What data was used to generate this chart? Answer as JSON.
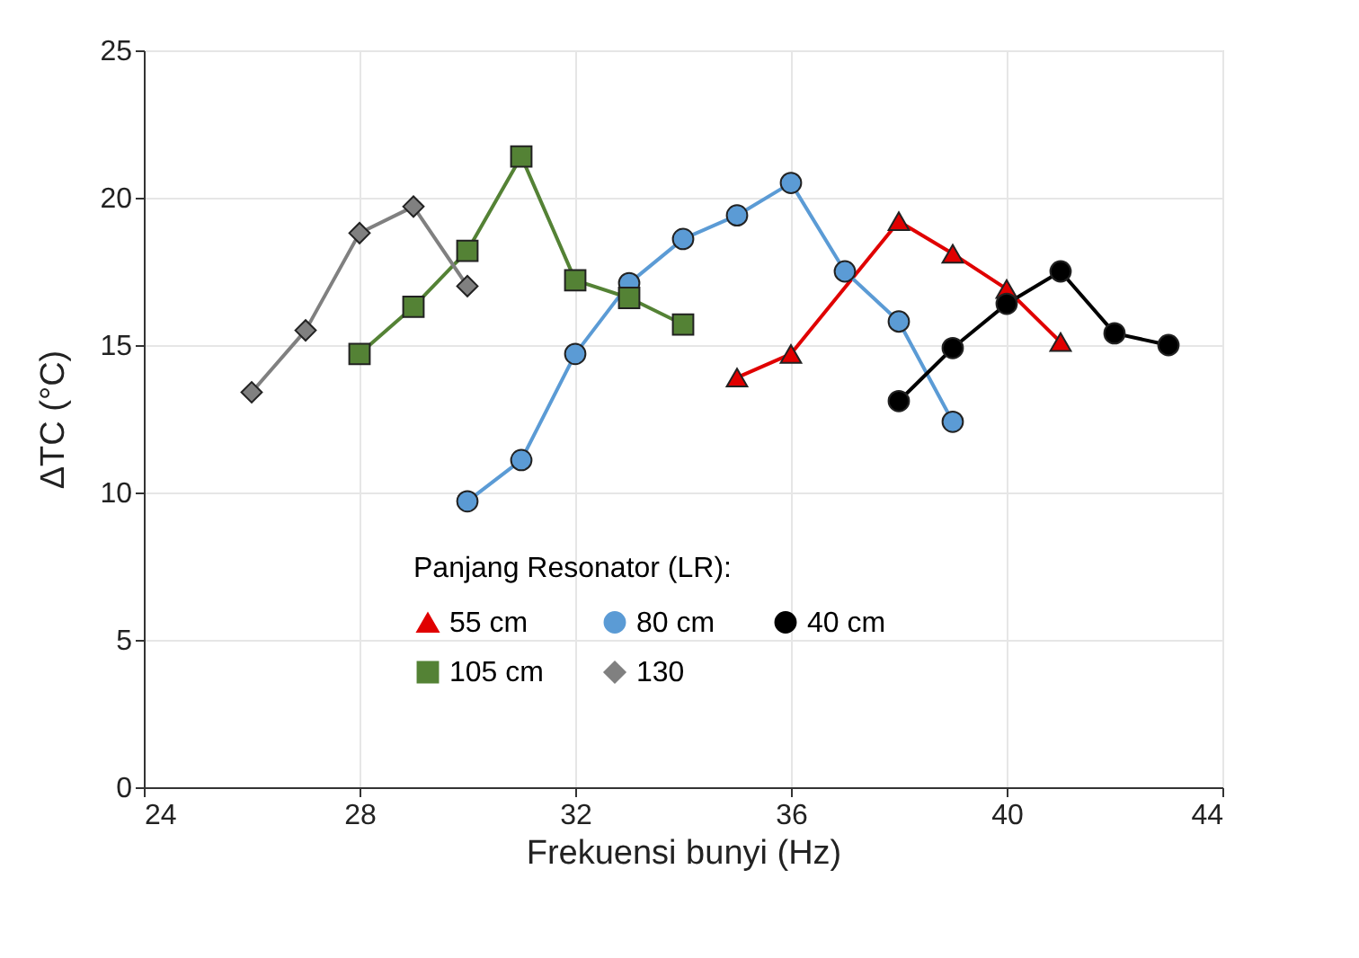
{
  "chart_data": {
    "type": "line",
    "xlabel": "Frekuensi bunyi (Hz)",
    "ylabel": "ΔTC (°C)",
    "legend_title": "Panjang Resonator (LR):",
    "legend": "bottom",
    "grid": true,
    "xlim": [
      24,
      44
    ],
    "xticks": [
      24,
      28,
      32,
      36,
      40,
      44
    ],
    "ylim": [
      0,
      25
    ],
    "yticks": [
      0,
      5,
      10,
      15,
      20,
      25
    ],
    "line_style": "solid",
    "series": [
      {
        "name": "55 cm",
        "color": "#e00000",
        "marker": "triangle",
        "x": [
          35,
          36,
          38,
          39,
          40,
          41
        ],
        "values": [
          13.9,
          14.7,
          19.2,
          18.1,
          16.9,
          15.1
        ]
      },
      {
        "name": "80 cm",
        "color": "#5b9bd5",
        "marker": "circle",
        "x": [
          30,
          31,
          32,
          33,
          34,
          35,
          36,
          37,
          38,
          39
        ],
        "values": [
          9.7,
          11.1,
          14.7,
          17.1,
          18.6,
          19.4,
          20.5,
          17.5,
          15.8,
          12.4
        ]
      },
      {
        "name": "40 cm",
        "color": "#000000",
        "marker": "circle",
        "x": [
          38,
          39,
          40,
          41,
          42,
          43
        ],
        "values": [
          13.1,
          14.9,
          16.4,
          17.5,
          15.4,
          15.0
        ]
      },
      {
        "name": "105 cm",
        "color": "#548235",
        "marker": "square",
        "x": [
          28,
          29,
          30,
          31,
          32,
          33,
          34
        ],
        "values": [
          14.7,
          16.3,
          18.2,
          21.4,
          17.2,
          16.6,
          15.7
        ]
      },
      {
        "name": "130",
        "color": "#808080",
        "marker": "diamond",
        "x": [
          26,
          27,
          28,
          29,
          30
        ],
        "values": [
          13.4,
          15.5,
          18.8,
          19.7,
          17.0
        ]
      }
    ]
  }
}
